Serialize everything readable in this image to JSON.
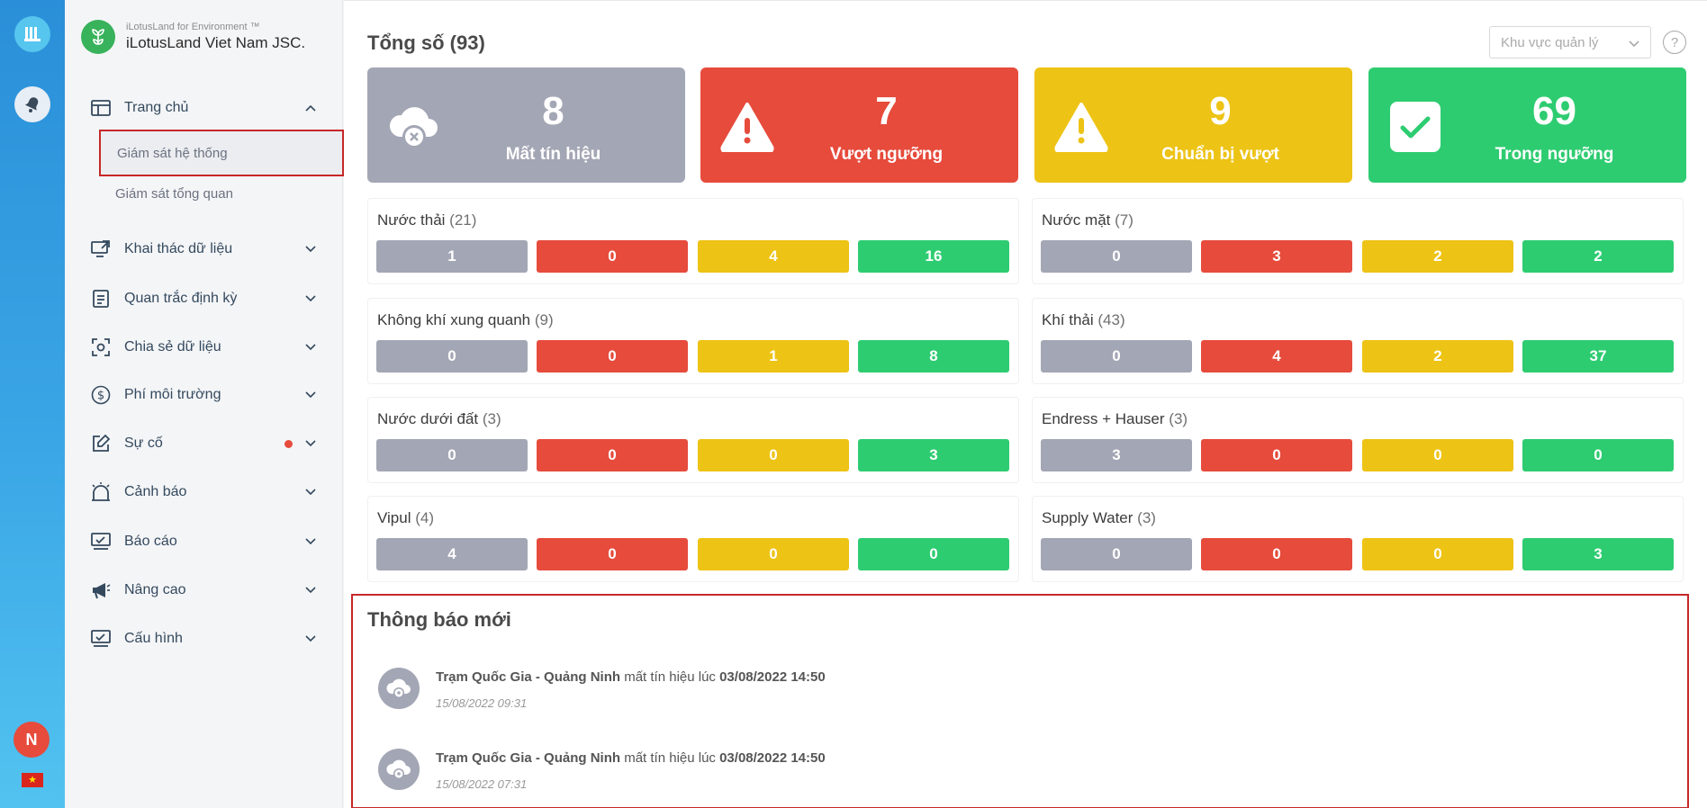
{
  "colors": {
    "gray": "#a3a6b4",
    "red": "#e64b3c",
    "yellow": "#edc315",
    "green": "#2ecc71"
  },
  "rail": {
    "avatar_letter": "N",
    "flag_symbol": "★"
  },
  "brand": {
    "subtitle": "iLotusLand for Environment ™",
    "title": "iLotusLand Viet Nam JSC."
  },
  "sidebar": {
    "items": [
      {
        "label": "Trang chủ",
        "icon": "home-layout-icon",
        "expanded": true
      },
      {
        "label": "Khai thác dữ liệu",
        "icon": "monitor-share-icon"
      },
      {
        "label": "Quan trắc định kỳ",
        "icon": "document-list-icon"
      },
      {
        "label": "Chia sẻ dữ liệu",
        "icon": "scan-share-icon"
      },
      {
        "label": "Phí môi trường",
        "icon": "dollar-circle-icon"
      },
      {
        "label": "Sự cố",
        "icon": "edit-incident-icon",
        "badge": "dot"
      },
      {
        "label": "Cảnh báo",
        "icon": "alarm-icon"
      },
      {
        "label": "Báo cáo",
        "icon": "report-icon"
      },
      {
        "label": "Nâng cao",
        "icon": "megaphone-icon"
      },
      {
        "label": "Cấu hình",
        "icon": "config-icon"
      }
    ],
    "subitems": [
      {
        "label": "Giám sát hệ thống",
        "active": true
      },
      {
        "label": "Giám sát tổng quan"
      }
    ]
  },
  "header": {
    "title": "Tổng số (93)",
    "area_placeholder": "Khu vực quản lý",
    "help": "?"
  },
  "stats": [
    {
      "value": "8",
      "label": "Mất tín hiệu",
      "icon": "cloud-disconnect-icon"
    },
    {
      "value": "7",
      "label": "Vượt ngưỡng",
      "icon": "warning-triangle-icon"
    },
    {
      "value": "9",
      "label": "Chuẩn bị vượt",
      "icon": "warning-triangle-icon"
    },
    {
      "value": "69",
      "label": "Trong ngưỡng",
      "icon": "check-square-icon"
    }
  ],
  "groups": [
    {
      "name": "Nước thải",
      "count": "(21)",
      "values": [
        "1",
        "0",
        "4",
        "16"
      ]
    },
    {
      "name": "Nước mặt",
      "count": "(7)",
      "values": [
        "0",
        "3",
        "2",
        "2"
      ]
    },
    {
      "name": "Không khí xung quanh",
      "count": "(9)",
      "values": [
        "0",
        "0",
        "1",
        "8"
      ]
    },
    {
      "name": "Khí thải",
      "count": "(43)",
      "values": [
        "0",
        "4",
        "2",
        "37"
      ]
    },
    {
      "name": "Nước dưới đất",
      "count": "(3)",
      "values": [
        "0",
        "0",
        "0",
        "3"
      ]
    },
    {
      "name": "Endress + Hauser",
      "count": "(3)",
      "values": [
        "3",
        "0",
        "0",
        "0"
      ]
    },
    {
      "name": "Vipul",
      "count": "(4)",
      "values": [
        "4",
        "0",
        "0",
        "0"
      ]
    },
    {
      "name": "Supply Water",
      "count": "(3)",
      "values": [
        "0",
        "0",
        "0",
        "3"
      ]
    }
  ],
  "notifications": {
    "title": "Thông báo mới",
    "items": [
      {
        "station": "Trạm Quốc Gia - Quảng Ninh",
        "message": "mất tín hiệu lúc",
        "at": "03/08/2022 14:50",
        "time": "15/08/2022 09:31"
      },
      {
        "station": "Trạm Quốc Gia - Quảng Ninh",
        "message": "mất tín hiệu lúc",
        "at": "03/08/2022 14:50",
        "time": "15/08/2022 07:31"
      }
    ]
  }
}
